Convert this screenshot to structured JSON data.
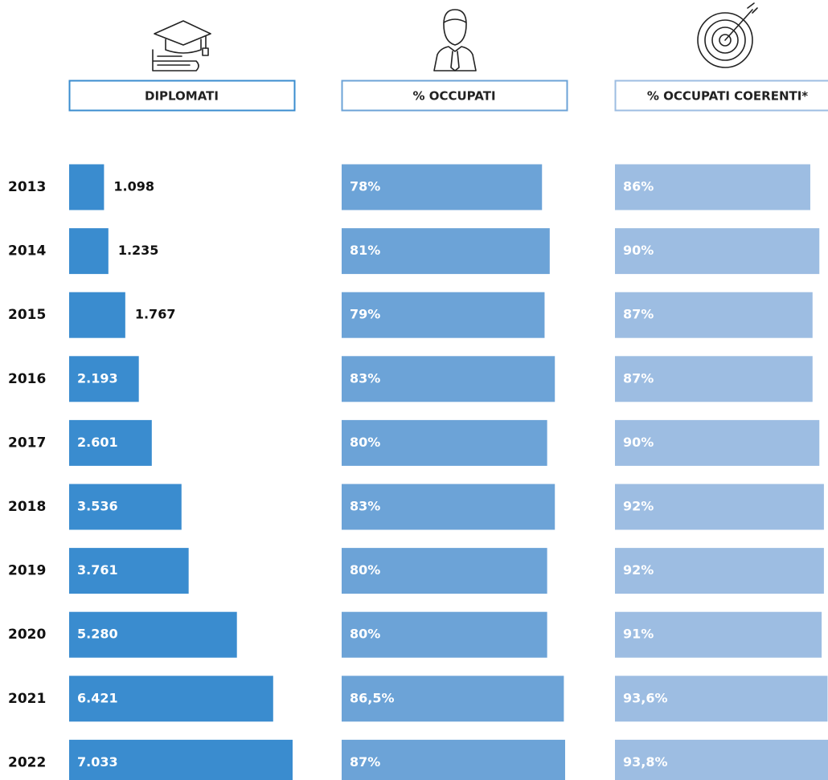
{
  "chart_data": {
    "type": "bar",
    "orientation": "horizontal",
    "categories": [
      "2013",
      "2014",
      "2015",
      "2016",
      "2017",
      "2018",
      "2019",
      "2020",
      "2021",
      "2022"
    ],
    "series": [
      {
        "name": "DIPLOMATI",
        "color": "#3a8ccf",
        "values": [
          1098,
          1235,
          1767,
          2193,
          2601,
          3536,
          3761,
          5280,
          6421,
          7033
        ],
        "value_labels": [
          "1.098",
          "1.235",
          "1.767",
          "2.193",
          "2.601",
          "3.536",
          "3.761",
          "5.280",
          "6.421",
          "7.033"
        ]
      },
      {
        "name": "% OCCUPATI",
        "color": "#6ca3d7",
        "values": [
          78,
          81,
          79,
          83,
          80,
          83,
          80,
          80,
          86.5,
          87
        ],
        "value_labels": [
          "78%",
          "81%",
          "79%",
          "83%",
          "80%",
          "83%",
          "80%",
          "80%",
          "86,5%",
          "87%"
        ]
      },
      {
        "name": "% OCCUPATI COERENTI*",
        "color": "#9dbde2",
        "values": [
          86,
          90,
          87,
          87,
          90,
          92,
          92,
          91,
          93.6,
          93.8
        ],
        "value_labels": [
          "86%",
          "90%",
          "87%",
          "87%",
          "90%",
          "92%",
          "92%",
          "91%",
          "93,6%",
          "93,8%"
        ]
      }
    ]
  }
}
